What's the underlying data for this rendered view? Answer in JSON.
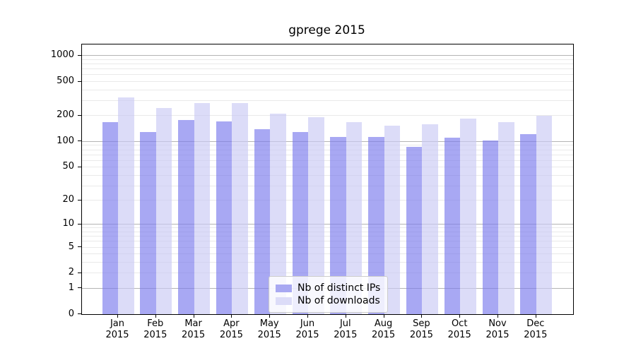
{
  "figure": {
    "title": "gprege 2015"
  },
  "chart_data": {
    "type": "bar",
    "title": "gprege 2015",
    "categories": [
      "Jan",
      "Feb",
      "Mar",
      "Apr",
      "May",
      "Jun",
      "Jul",
      "Aug",
      "Sep",
      "Oct",
      "Nov",
      "Dec"
    ],
    "year_label": "2015",
    "series": [
      {
        "name": "Nb of distinct IPs",
        "key": "ips",
        "bar_color": "rgba(121,121,236,0.65)",
        "legend_color": "#a8a8f2",
        "values": [
          168,
          128,
          180,
          171,
          140,
          130,
          112,
          114,
          87,
          110,
          102,
          121
        ]
      },
      {
        "name": "Nb of downloads",
        "key": "downloads",
        "bar_color": "rgba(201,201,244,0.65)",
        "legend_color": "#dcdcf8",
        "values": [
          325,
          246,
          283,
          283,
          211,
          194,
          168,
          153,
          160,
          186,
          168,
          200
        ]
      }
    ],
    "xlabel": "",
    "ylabel": "",
    "yscale": "log1p",
    "ylim": [
      0,
      1350
    ],
    "yticks": [
      1000,
      500,
      200,
      100,
      50,
      20,
      10,
      5,
      2,
      1,
      0
    ],
    "grid": {
      "on": true,
      "major_values": [
        1,
        10,
        100,
        1000
      ],
      "major_color": "#b4b4b4",
      "minor_color": "#e9e9e9"
    },
    "legend": {
      "position": "lower center",
      "entries": [
        "Nb of distinct IPs",
        "Nb of downloads"
      ]
    }
  }
}
